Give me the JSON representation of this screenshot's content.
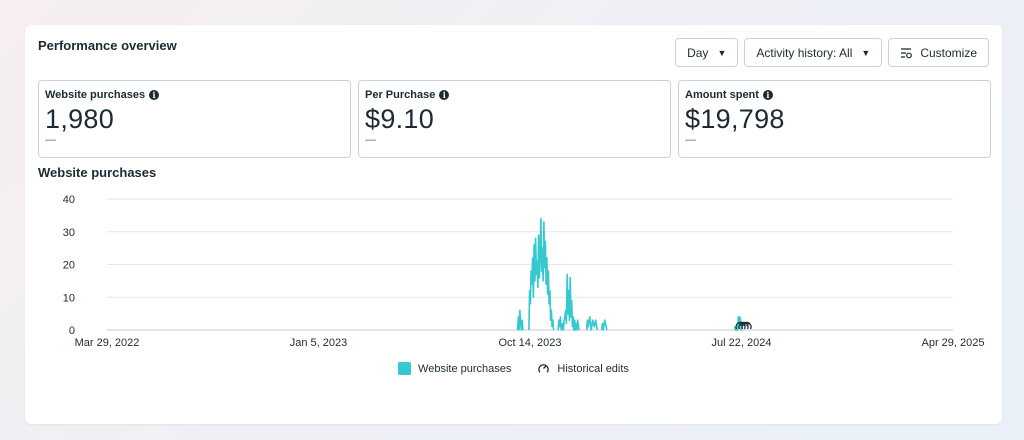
{
  "header": {
    "title": "Performance overview",
    "day_label": "Day",
    "activity_label": "Activity history: All",
    "customize_label": "Customize"
  },
  "metrics": [
    {
      "label": "Website purchases",
      "value": "1,980",
      "delta": "—"
    },
    {
      "label": "Per Purchase",
      "value": "$9.10",
      "delta": "—"
    },
    {
      "label": "Amount spent",
      "value": "$19,798",
      "delta": "—"
    }
  ],
  "chart": {
    "title": "Website purchases",
    "legend": {
      "series": "Website purchases",
      "edits": "Historical edits"
    }
  },
  "colors": {
    "series": "#34c8cf",
    "grid": "#e4e6eb",
    "text": "#1c2b33"
  },
  "icons": [
    "info-icon",
    "caret-down-icon",
    "customize-icon",
    "historical-edits-icon"
  ],
  "chart_data": {
    "type": "area",
    "title": "Website purchases",
    "xlabel": "",
    "ylabel": "",
    "ylim": [
      0,
      40
    ],
    "yticks": [
      0,
      10,
      20,
      30,
      40
    ],
    "xticks": [
      "Mar 29, 2022",
      "Jan 5, 2023",
      "Oct 14, 2023",
      "Jul 22, 2024",
      "Apr 29, 2025"
    ],
    "xrange": [
      "2022-03-29",
      "2025-04-29"
    ],
    "grid": true,
    "legend": "bottom",
    "series": [
      {
        "name": "Website purchases",
        "points": [
          [
            "2023-09-27",
            0
          ],
          [
            "2023-09-28",
            4
          ],
          [
            "2023-09-29",
            0
          ],
          [
            "2023-09-30",
            6
          ],
          [
            "2023-10-01",
            2
          ],
          [
            "2023-10-02",
            0
          ],
          [
            "2023-10-03",
            3
          ],
          [
            "2023-10-04",
            0
          ],
          [
            "2023-10-12",
            0
          ],
          [
            "2023-10-13",
            12
          ],
          [
            "2023-10-14",
            8
          ],
          [
            "2023-10-15",
            18
          ],
          [
            "2023-10-16",
            14
          ],
          [
            "2023-10-17",
            22
          ],
          [
            "2023-10-18",
            10
          ],
          [
            "2023-10-19",
            26
          ],
          [
            "2023-10-20",
            15
          ],
          [
            "2023-10-21",
            28
          ],
          [
            "2023-10-22",
            17
          ],
          [
            "2023-10-23",
            21
          ],
          [
            "2023-10-24",
            13
          ],
          [
            "2023-10-25",
            29
          ],
          [
            "2023-10-26",
            16
          ],
          [
            "2023-10-27",
            24
          ],
          [
            "2023-10-28",
            34
          ],
          [
            "2023-10-29",
            18
          ],
          [
            "2023-10-30",
            25
          ],
          [
            "2023-10-31",
            15
          ],
          [
            "2023-11-01",
            33
          ],
          [
            "2023-11-02",
            19
          ],
          [
            "2023-11-03",
            27
          ],
          [
            "2023-11-04",
            14
          ],
          [
            "2023-11-05",
            22
          ],
          [
            "2023-11-06",
            11
          ],
          [
            "2023-11-07",
            18
          ],
          [
            "2023-11-08",
            8
          ],
          [
            "2023-11-09",
            12
          ],
          [
            "2023-11-10",
            3
          ],
          [
            "2023-11-11",
            6
          ],
          [
            "2023-11-12",
            1
          ],
          [
            "2023-11-13",
            3
          ],
          [
            "2023-11-14",
            0
          ],
          [
            "2023-11-20",
            0
          ],
          [
            "2023-11-21",
            3
          ],
          [
            "2023-11-22",
            1
          ],
          [
            "2023-11-23",
            4
          ],
          [
            "2023-11-24",
            0
          ],
          [
            "2023-11-26",
            2
          ],
          [
            "2023-11-27",
            0
          ],
          [
            "2023-11-28",
            3
          ],
          [
            "2023-11-30",
            6
          ],
          [
            "2023-12-01",
            2
          ],
          [
            "2023-12-02",
            17
          ],
          [
            "2023-12-03",
            5
          ],
          [
            "2023-12-04",
            12
          ],
          [
            "2023-12-05",
            3
          ],
          [
            "2023-12-06",
            16
          ],
          [
            "2023-12-07",
            4
          ],
          [
            "2023-12-08",
            9
          ],
          [
            "2023-12-09",
            1
          ],
          [
            "2023-12-10",
            4
          ],
          [
            "2023-12-11",
            0
          ],
          [
            "2023-12-12",
            3
          ],
          [
            "2023-12-13",
            0
          ],
          [
            "2023-12-14",
            2
          ],
          [
            "2023-12-15",
            0
          ],
          [
            "2023-12-16",
            3
          ],
          [
            "2023-12-17",
            1
          ],
          [
            "2023-12-18",
            0
          ],
          [
            "2023-12-28",
            0
          ],
          [
            "2023-12-29",
            3
          ],
          [
            "2023-12-30",
            1
          ],
          [
            "2024-01-01",
            4
          ],
          [
            "2024-01-03",
            0
          ],
          [
            "2024-01-05",
            3
          ],
          [
            "2024-01-07",
            1
          ],
          [
            "2024-01-09",
            3
          ],
          [
            "2024-01-11",
            0
          ],
          [
            "2024-01-17",
            0
          ],
          [
            "2024-01-18",
            2
          ],
          [
            "2024-01-19",
            0
          ],
          [
            "2024-01-21",
            3
          ],
          [
            "2024-01-23",
            1
          ],
          [
            "2024-01-24",
            0
          ],
          [
            "2024-07-12",
            1
          ],
          [
            "2024-07-13",
            0
          ],
          [
            "2024-07-16",
            0
          ],
          [
            "2024-07-17",
            4
          ],
          [
            "2024-07-18",
            2
          ],
          [
            "2024-07-19",
            4
          ],
          [
            "2024-07-20",
            3
          ],
          [
            "2024-07-21",
            0
          ],
          [
            "2024-07-22",
            1
          ]
        ]
      }
    ],
    "historical_edits": [
      "2024-07-20",
      "2024-07-24",
      "2024-07-28"
    ]
  }
}
